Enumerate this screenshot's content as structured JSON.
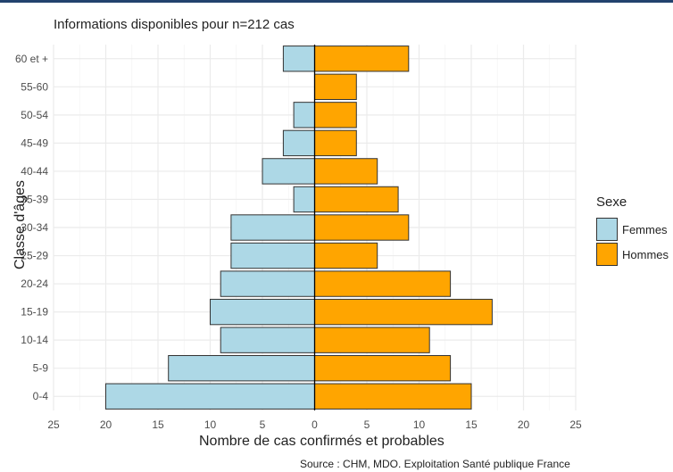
{
  "title": "Informations disponibles pour n=212 cas",
  "source": "Source : CHM, MDO. Exploitation Santé publique France",
  "colors": {
    "femmes": "#add8e6",
    "hommes": "#ffa500",
    "grid": "#ebebeb",
    "bar_border": "#333333"
  },
  "chart_data": {
    "type": "bar",
    "orientation": "horizontal",
    "layout": "population-pyramid",
    "categories": [
      "0-4",
      "5-9",
      "10-14",
      "15-19",
      "20-24",
      "25-29",
      "30-34",
      "35-39",
      "40-44",
      "45-49",
      "50-54",
      "55-60",
      "60 et +"
    ],
    "series": [
      {
        "name": "Femmes",
        "values": [
          20,
          14,
          9,
          10,
          9,
          8,
          8,
          2,
          5,
          3,
          2,
          0,
          3
        ]
      },
      {
        "name": "Hommes",
        "values": [
          15,
          13,
          11,
          17,
          13,
          6,
          9,
          8,
          6,
          4,
          4,
          4,
          9
        ]
      }
    ],
    "xlabel": "Nombre de cas confirmés et probables",
    "ylabel": "Classe d'âges",
    "xlim": [
      -25,
      25
    ],
    "xticks": [
      -25,
      -20,
      -15,
      -10,
      -5,
      0,
      5,
      10,
      15,
      20,
      25
    ],
    "xtick_labels": [
      "25",
      "20",
      "15",
      "10",
      "5",
      "0",
      "5",
      "10",
      "15",
      "20",
      "25"
    ],
    "legend": {
      "title": "Sexe",
      "position": "right"
    },
    "grid": true
  }
}
